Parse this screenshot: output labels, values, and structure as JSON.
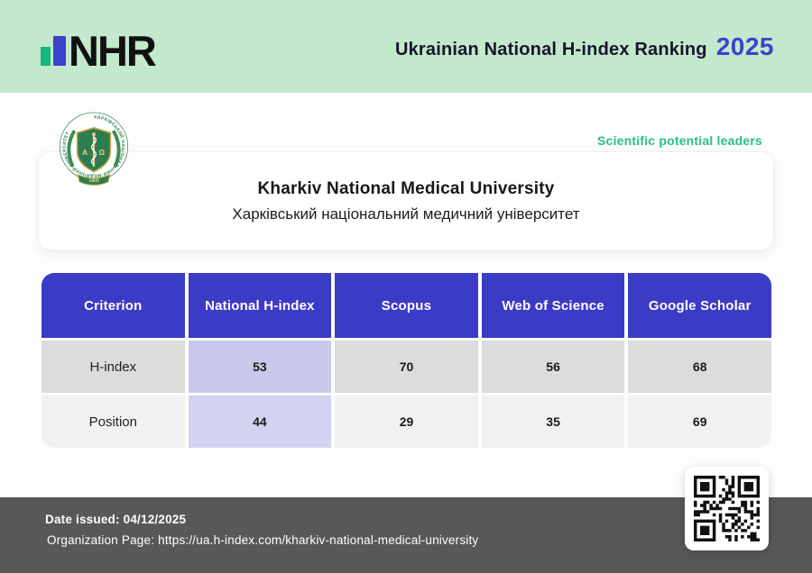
{
  "header": {
    "logo_text": "NHR",
    "title": "Ukrainian National H-index Ranking",
    "year": "2025"
  },
  "badge": "Scientific potential leaders",
  "university": {
    "name_en": "Kharkiv National Medical University",
    "name_uk": "Харківський національний медичний університет"
  },
  "table": {
    "columns": [
      "Criterion",
      "National H-index",
      "Scopus",
      "Web of Science",
      "Google Scholar"
    ],
    "rows": [
      {
        "label": "H-index",
        "values": [
          "53",
          "70",
          "56",
          "68"
        ]
      },
      {
        "label": "Position",
        "values": [
          "44",
          "29",
          "35",
          "69"
        ]
      }
    ]
  },
  "footer": {
    "date_label": "Date issued:",
    "date_value": "04/12/2025",
    "org_label": "Organization Page:",
    "org_value": "https://ua.h-index.com/kharkiv-national-medical-university"
  },
  "colors": {
    "banner_green": "#c3e8cd",
    "logo_bar_green": "#14b87c",
    "accent_blue": "#3a43cb",
    "table_header_blue": "#3b3cc5",
    "badge_green": "#2bbd8d",
    "row_dark_gray": "#dcdcdd",
    "row_light_gray": "#f1f1f3",
    "highlight_lavender_dark": "#c9c9ec",
    "highlight_lavender_light": "#d2d2f1",
    "flag_blue": "#4a63d0",
    "flag_yellow": "#ffd02e",
    "footer_gray": "#585858"
  }
}
